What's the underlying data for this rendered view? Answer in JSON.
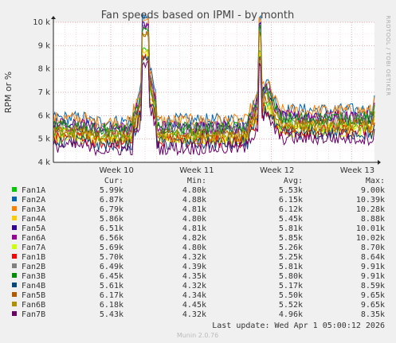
{
  "chart_data": {
    "type": "line",
    "title": "Fan speeds based on IPMI - by month",
    "ylabel": "RPM or %",
    "ylim": [
      4000,
      10000
    ],
    "yticks": [
      4000,
      5000,
      6000,
      7000,
      8000,
      9000,
      10000
    ],
    "ytick_labels": [
      "4 k",
      "5 k",
      "6 k",
      "7 k",
      "8 k",
      "9 k",
      "10 k"
    ],
    "xlim_days": [
      0,
      28
    ],
    "x_tick_labels": [
      {
        "label": "Week 10",
        "day": 5.5
      },
      {
        "label": "Week 11",
        "day": 12.5
      },
      {
        "label": "Week 12",
        "day": 19.5
      },
      {
        "label": "Week 13",
        "day": 26.5
      }
    ],
    "grid": true,
    "side_label": "RRDTOOL / TOBI OETIKER",
    "footer": "Munin 2.0.76",
    "last_update": "Last update: Wed Apr  1 05:00:12 2026",
    "legend_headers": {
      "cur": "Cur:",
      "min": "Min:",
      "avg": "Avg:",
      "max": "Max:"
    },
    "series": [
      {
        "name": "Fan1A",
        "color": "#00cc00",
        "cur": "5.99k",
        "min": "4.80k",
        "avg": "5.53k",
        "max": "9.00k"
      },
      {
        "name": "Fan2A",
        "color": "#0066b3",
        "cur": "6.87k",
        "min": "4.88k",
        "avg": "6.15k",
        "max": "10.39k"
      },
      {
        "name": "Fan3A",
        "color": "#ff8000",
        "cur": "6.79k",
        "min": "4.81k",
        "avg": "6.12k",
        "max": "10.28k"
      },
      {
        "name": "Fan4A",
        "color": "#ffcc00",
        "cur": "5.86k",
        "min": "4.80k",
        "avg": "5.45k",
        "max": "8.88k"
      },
      {
        "name": "Fan5A",
        "color": "#330099",
        "cur": "6.51k",
        "min": "4.81k",
        "avg": "5.81k",
        "max": "10.01k"
      },
      {
        "name": "Fan6A",
        "color": "#990099",
        "cur": "6.56k",
        "min": "4.82k",
        "avg": "5.85k",
        "max": "10.02k"
      },
      {
        "name": "Fan7A",
        "color": "#ccff00",
        "cur": "5.69k",
        "min": "4.80k",
        "avg": "5.26k",
        "max": "8.70k"
      },
      {
        "name": "Fan1B",
        "color": "#ff0000",
        "cur": "5.70k",
        "min": "4.32k",
        "avg": "5.25k",
        "max": "8.64k"
      },
      {
        "name": "Fan2B",
        "color": "#808080",
        "cur": "6.49k",
        "min": "4.39k",
        "avg": "5.81k",
        "max": "9.91k"
      },
      {
        "name": "Fan3B",
        "color": "#008f00",
        "cur": "6.45k",
        "min": "4.35k",
        "avg": "5.80k",
        "max": "9.91k"
      },
      {
        "name": "Fan4B",
        "color": "#00487d",
        "cur": "5.61k",
        "min": "4.32k",
        "avg": "5.17k",
        "max": "8.59k"
      },
      {
        "name": "Fan5B",
        "color": "#b35a00",
        "cur": "6.17k",
        "min": "4.34k",
        "avg": "5.50k",
        "max": "9.65k"
      },
      {
        "name": "Fan6B",
        "color": "#b38f00",
        "cur": "6.18k",
        "min": "4.45k",
        "avg": "5.52k",
        "max": "9.65k"
      },
      {
        "name": "Fan7B",
        "color": "#6b006b",
        "cur": "5.43k",
        "min": "4.32k",
        "avg": "4.96k",
        "max": "8.35k"
      }
    ]
  }
}
